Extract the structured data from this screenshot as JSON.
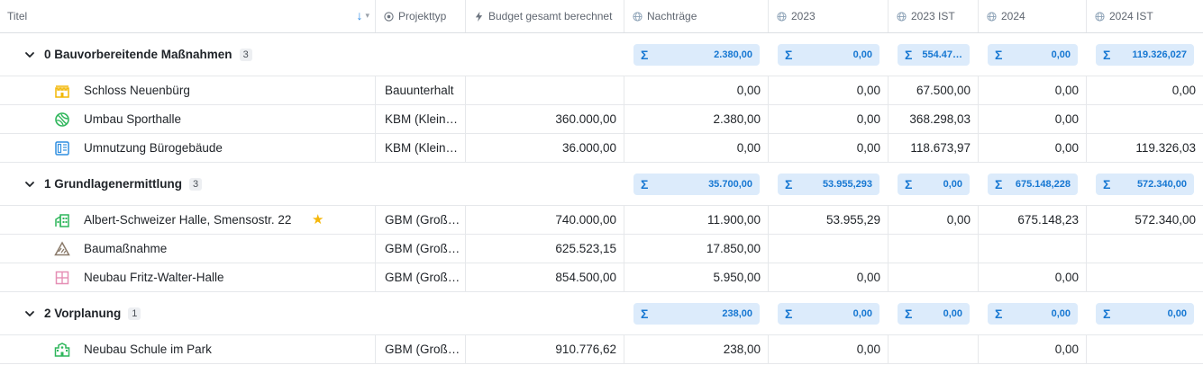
{
  "columns": {
    "titel": "Titel",
    "projekttyp": "Projekttyp",
    "budget": "Budget gesamt berechnet",
    "nachtraege": "Nachträge",
    "y2023": "2023",
    "y2023ist": "2023 IST",
    "y2024": "2024",
    "y2024ist": "2024 IST",
    "sigma": "Σ"
  },
  "groups": [
    {
      "label": "0 Bauvorbereitende Maßnahmen",
      "count": "3",
      "sums": [
        "2.380,00",
        "0,00",
        "554.47…",
        "0,00",
        "119.326,027"
      ],
      "items": [
        {
          "icon": "castle-icon",
          "color": "#f2b705",
          "title": "Schloss Neuenbürg",
          "typ": "Bauunterhalt",
          "budget": "",
          "nachtraege": "0,00",
          "y2023": "0,00",
          "y2023ist": "67.500,00",
          "y2024": "0,00",
          "y2024ist": "0,00"
        },
        {
          "icon": "ball-icon",
          "color": "#2fb65b",
          "title": "Umbau Sporthalle",
          "typ": "KBM (Klein…",
          "budget": "360.000,00",
          "nachtraege": "2.380,00",
          "y2023": "0,00",
          "y2023ist": "368.298,03",
          "y2024": "0,00",
          "y2024ist": ""
        },
        {
          "icon": "office-icon",
          "color": "#2f8ee0",
          "title": "Umnutzung Bürogebäude",
          "typ": "KBM (Klein…",
          "budget": "36.000,00",
          "nachtraege": "0,00",
          "y2023": "0,00",
          "y2023ist": "118.673,97",
          "y2024": "0,00",
          "y2024ist": "119.326,03"
        }
      ]
    },
    {
      "label": "1 Grundlagenermittlung",
      "count": "3",
      "sums": [
        "35.700,00",
        "53.955,293",
        "0,00",
        "675.148,228",
        "572.340,00"
      ],
      "items": [
        {
          "icon": "hall-icon",
          "color": "#2fb65b",
          "title": "Albert-Schweizer Halle, Smensostr. 22",
          "typ": "GBM (Groß…",
          "budget": "740.000,00",
          "nachtraege": "11.900,00",
          "y2023": "53.955,29",
          "y2023ist": "0,00",
          "y2024": "675.148,23",
          "y2024ist": "572.340,00",
          "starred": true
        },
        {
          "icon": "construction-icon",
          "color": "#8a7a6a",
          "title": "Baumaßnahme",
          "typ": "GBM (Groß…",
          "budget": "625.523,15",
          "nachtraege": "17.850,00",
          "y2023": "",
          "y2023ist": "",
          "y2024": "",
          "y2024ist": ""
        },
        {
          "icon": "window-icon",
          "color": "#e58fb5",
          "title": "Neubau Fritz-Walter-Halle",
          "typ": "GBM (Groß…",
          "budget": "854.500,00",
          "nachtraege": "5.950,00",
          "y2023": "0,00",
          "y2023ist": "",
          "y2024": "0,00",
          "y2024ist": ""
        }
      ]
    },
    {
      "label": "2 Vorplanung",
      "count": "1",
      "sums": [
        "238,00",
        "0,00",
        "0,00",
        "0,00",
        "0,00"
      ],
      "items": [
        {
          "icon": "school-icon",
          "color": "#2fb65b",
          "title": "Neubau Schule im Park",
          "typ": "GBM (Groß…",
          "budget": "910.776,62",
          "nachtraege": "238,00",
          "y2023": "0,00",
          "y2023ist": "",
          "y2024": "0,00",
          "y2024ist": ""
        }
      ]
    }
  ]
}
